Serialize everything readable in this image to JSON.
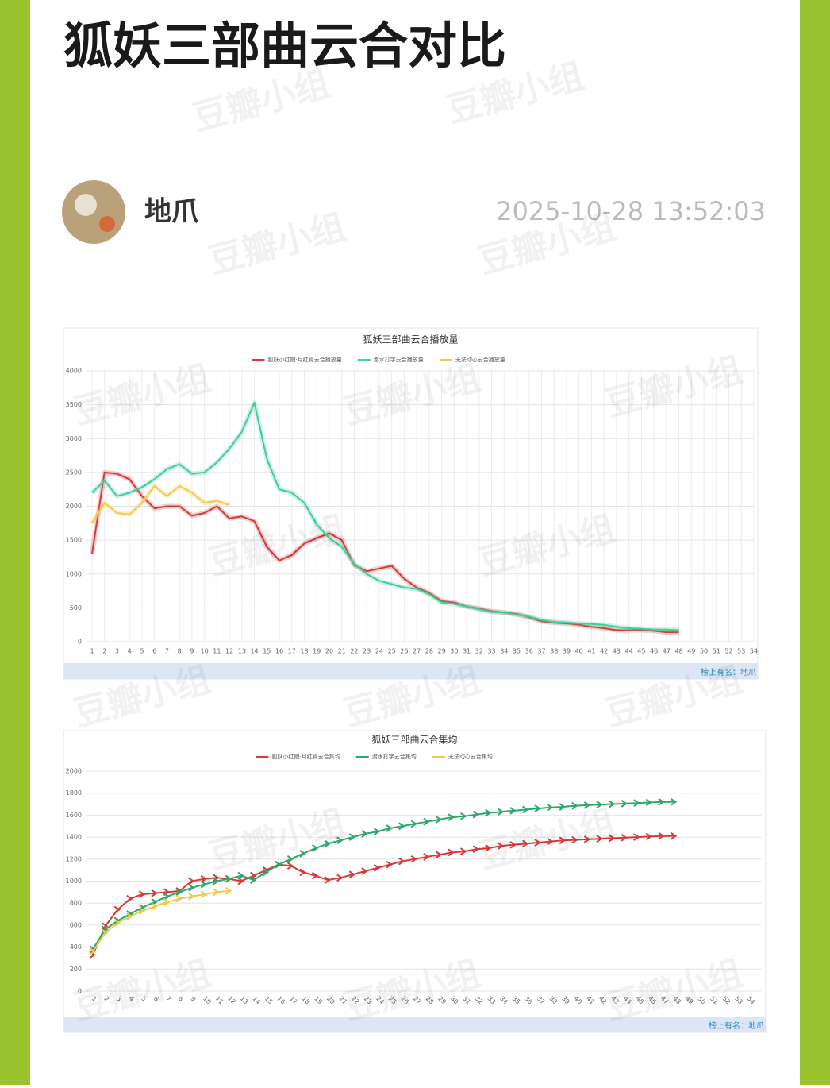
{
  "post": {
    "title": "狐妖三部曲云合对比",
    "author": "地爪",
    "timestamp": "2025-10-28 13:52:03",
    "watermark": "豆瓣小组",
    "source": "榜上有名：地爪"
  },
  "chart_data": [
    {
      "type": "line",
      "title": "狐妖三部曲云合播放量",
      "grid": true,
      "legend": "top",
      "categories": [
        1,
        2,
        3,
        4,
        5,
        6,
        7,
        8,
        9,
        10,
        11,
        12,
        13,
        14,
        15,
        16,
        17,
        18,
        19,
        20,
        21,
        22,
        23,
        24,
        25,
        26,
        27,
        28,
        29,
        30,
        31,
        32,
        33,
        34,
        35,
        36,
        37,
        38,
        39,
        40,
        41,
        42,
        43,
        44,
        45,
        46,
        47,
        48,
        49,
        50,
        51,
        52,
        53,
        54
      ],
      "ylim": [
        0,
        4000
      ],
      "yticks": [
        0,
        500,
        1000,
        1500,
        2000,
        2500,
        3000,
        3500,
        4000
      ],
      "series": [
        {
          "name": "狐妖小红娘·月红篇云合播放量",
          "color": "#d63a3a",
          "values": [
            1300,
            2500,
            2480,
            2400,
            2150,
            1970,
            2000,
            2000,
            1860,
            1900,
            2000,
            1820,
            1850,
            1780,
            1400,
            1200,
            1280,
            1450,
            1530,
            1600,
            1500,
            1130,
            1040,
            1080,
            1120,
            930,
            800,
            720,
            600,
            580,
            520,
            490,
            450,
            430,
            410,
            360,
            300,
            280,
            270,
            250,
            220,
            200,
            170,
            170,
            170,
            160,
            140,
            140,
            null,
            null,
            null,
            null,
            null,
            null
          ]
        },
        {
          "name": "渡水打字云合播放量",
          "color": "#3ecf9a",
          "values": [
            2200,
            2380,
            2150,
            2200,
            2280,
            2400,
            2550,
            2620,
            2480,
            2500,
            2650,
            2850,
            3100,
            3530,
            2700,
            2250,
            2200,
            2050,
            1730,
            1530,
            1400,
            1150,
            1000,
            900,
            850,
            800,
            780,
            700,
            580,
            560,
            520,
            480,
            440,
            430,
            400,
            370,
            320,
            290,
            280,
            270,
            260,
            250,
            220,
            200,
            190,
            180,
            180,
            170,
            null,
            null,
            null,
            null,
            null,
            null
          ]
        },
        {
          "name": "无法动心云合播放量",
          "color": "#f2c94c",
          "values": [
            1750,
            2050,
            1900,
            1880,
            2050,
            2300,
            2150,
            2300,
            2200,
            2050,
            2080,
            2020,
            null,
            null,
            null,
            null,
            null,
            null,
            null,
            null,
            null,
            null,
            null,
            null,
            null,
            null,
            null,
            null,
            null,
            null,
            null,
            null,
            null,
            null,
            null,
            null,
            null,
            null,
            null,
            null,
            null,
            null,
            null,
            null,
            null,
            null,
            null,
            null,
            null,
            null,
            null,
            null,
            null,
            null
          ]
        }
      ]
    },
    {
      "type": "line",
      "title": "狐妖三部曲云合集均",
      "grid": true,
      "legend": "top",
      "markers": "arrow",
      "categories": [
        1,
        2,
        3,
        4,
        5,
        6,
        7,
        8,
        9,
        10,
        11,
        12,
        13,
        14,
        15,
        16,
        17,
        18,
        19,
        20,
        21,
        22,
        23,
        24,
        25,
        26,
        27,
        28,
        29,
        30,
        31,
        32,
        33,
        34,
        35,
        36,
        37,
        38,
        39,
        40,
        41,
        42,
        43,
        44,
        45,
        46,
        47,
        48,
        49,
        50,
        51,
        52,
        53,
        54
      ],
      "ylim": [
        0,
        2000
      ],
      "yticks": [
        0,
        200,
        400,
        600,
        800,
        1000,
        1200,
        1400,
        1600,
        1800,
        2000
      ],
      "series": [
        {
          "name": "狐妖小红娘·月红篇云合集均",
          "color": "#d63a3a",
          "values": [
            330,
            590,
            740,
            840,
            880,
            890,
            900,
            910,
            1000,
            1020,
            1030,
            1020,
            1000,
            1050,
            1100,
            1150,
            1140,
            1080,
            1050,
            1010,
            1030,
            1060,
            1090,
            1120,
            1150,
            1180,
            1200,
            1220,
            1240,
            1260,
            1270,
            1290,
            1300,
            1320,
            1330,
            1340,
            1350,
            1360,
            1370,
            1375,
            1380,
            1385,
            1390,
            1395,
            1400,
            1405,
            1410,
            1410,
            null,
            null,
            null,
            null,
            null,
            null
          ]
        },
        {
          "name": "渡水打字云合集均",
          "color": "#2ca86a",
          "values": [
            380,
            560,
            640,
            700,
            760,
            810,
            860,
            900,
            940,
            970,
            1000,
            1020,
            1050,
            1010,
            1080,
            1150,
            1200,
            1250,
            1300,
            1340,
            1370,
            1400,
            1430,
            1450,
            1480,
            1500,
            1520,
            1540,
            1560,
            1580,
            1590,
            1605,
            1620,
            1630,
            1640,
            1650,
            1660,
            1670,
            1675,
            1685,
            1690,
            1695,
            1700,
            1705,
            1710,
            1715,
            1720,
            1720,
            null,
            null,
            null,
            null,
            null,
            null
          ]
        },
        {
          "name": "无法动心云合集均",
          "color": "#f2c94c",
          "values": [
            360,
            530,
            620,
            680,
            730,
            770,
            810,
            840,
            860,
            880,
            900,
            910,
            null,
            null,
            null,
            null,
            null,
            null,
            null,
            null,
            null,
            null,
            null,
            null,
            null,
            null,
            null,
            null,
            null,
            null,
            null,
            null,
            null,
            null,
            null,
            null,
            null,
            null,
            null,
            null,
            null,
            null,
            null,
            null,
            null,
            null,
            null,
            null,
            null,
            null,
            null,
            null,
            null,
            null
          ]
        }
      ]
    }
  ]
}
